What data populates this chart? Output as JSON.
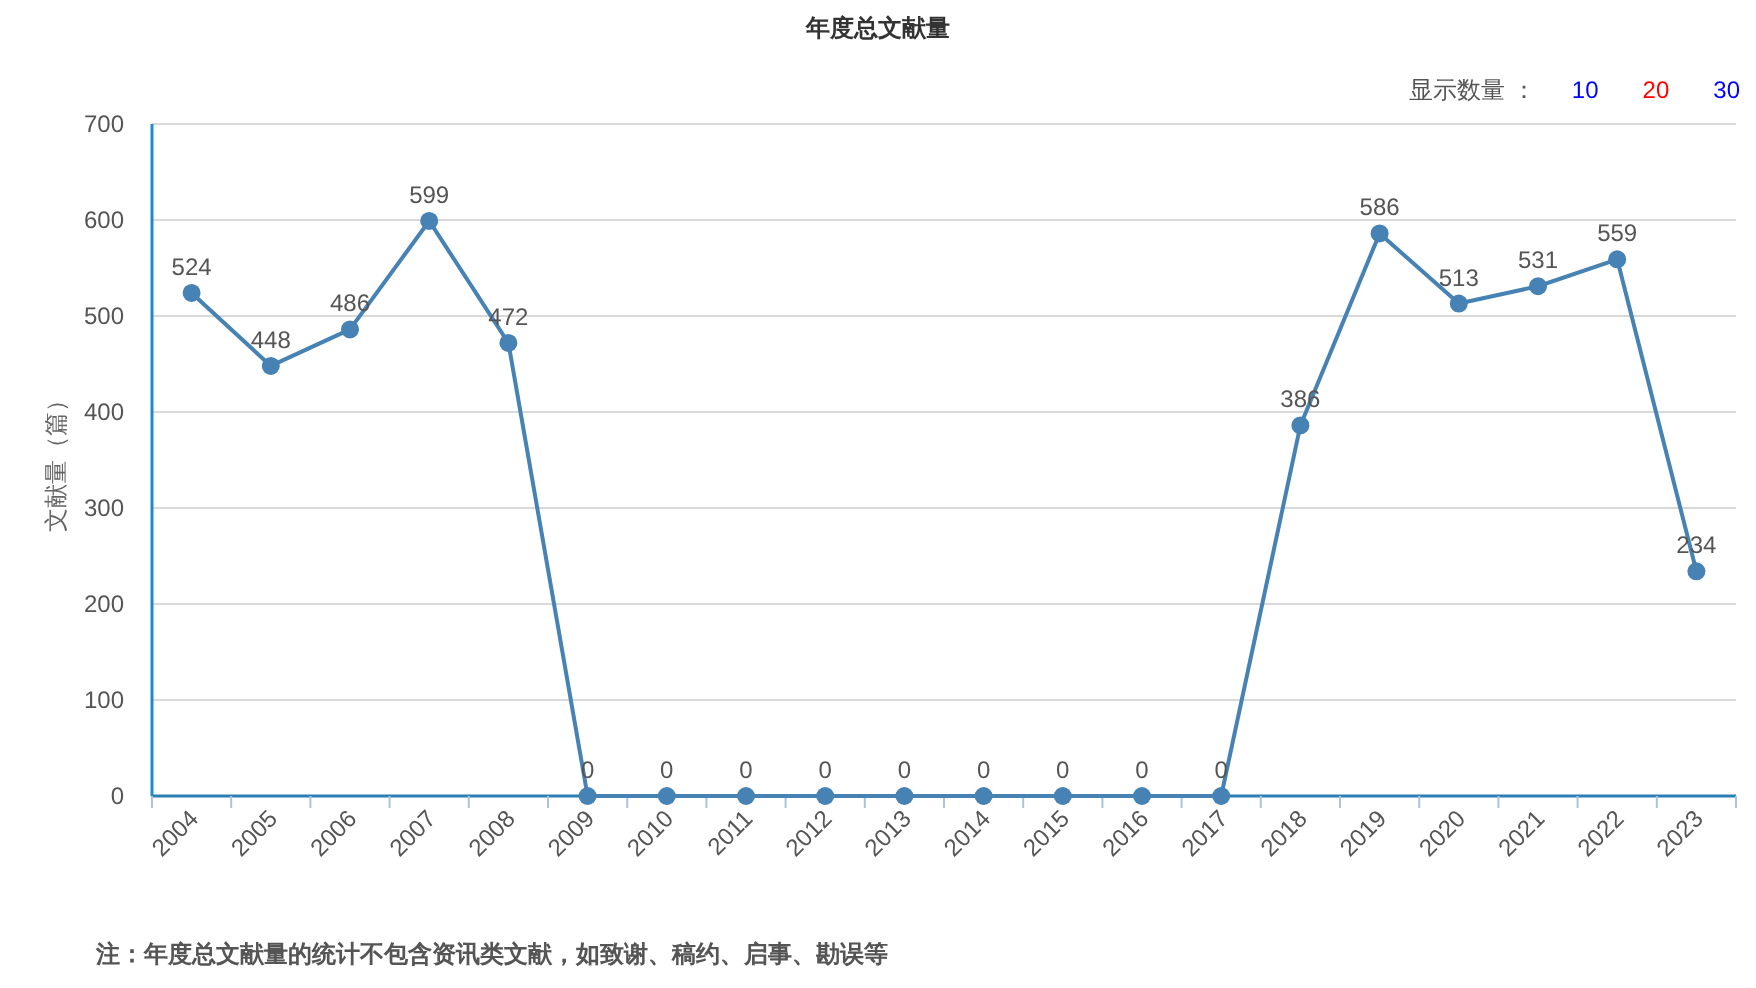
{
  "chart_data": {
    "type": "line",
    "title": "年度总文献量",
    "ylabel": "文献量（篇）",
    "categories": [
      "2004",
      "2005",
      "2006",
      "2007",
      "2008",
      "2009",
      "2010",
      "2011",
      "2012",
      "2013",
      "2014",
      "2015",
      "2016",
      "2017",
      "2018",
      "2019",
      "2020",
      "2021",
      "2022",
      "2023"
    ],
    "values": [
      524,
      448,
      486,
      599,
      472,
      0,
      0,
      0,
      0,
      0,
      0,
      0,
      0,
      0,
      386,
      586,
      513,
      531,
      559,
      234
    ],
    "color": "#4682b4",
    "ylim": [
      0,
      700
    ],
    "yticks": [
      0,
      100,
      200,
      300,
      400,
      500,
      600,
      700
    ],
    "grid": "y",
    "marker": "circle",
    "line_style": "solid",
    "data_labels": true,
    "annotations": [
      "显示数量 ：",
      "10",
      "20",
      "30",
      "注：年度总文献量的统计不包含资讯类文献，如致谢、稿约、启事、勘误等"
    ]
  }
}
